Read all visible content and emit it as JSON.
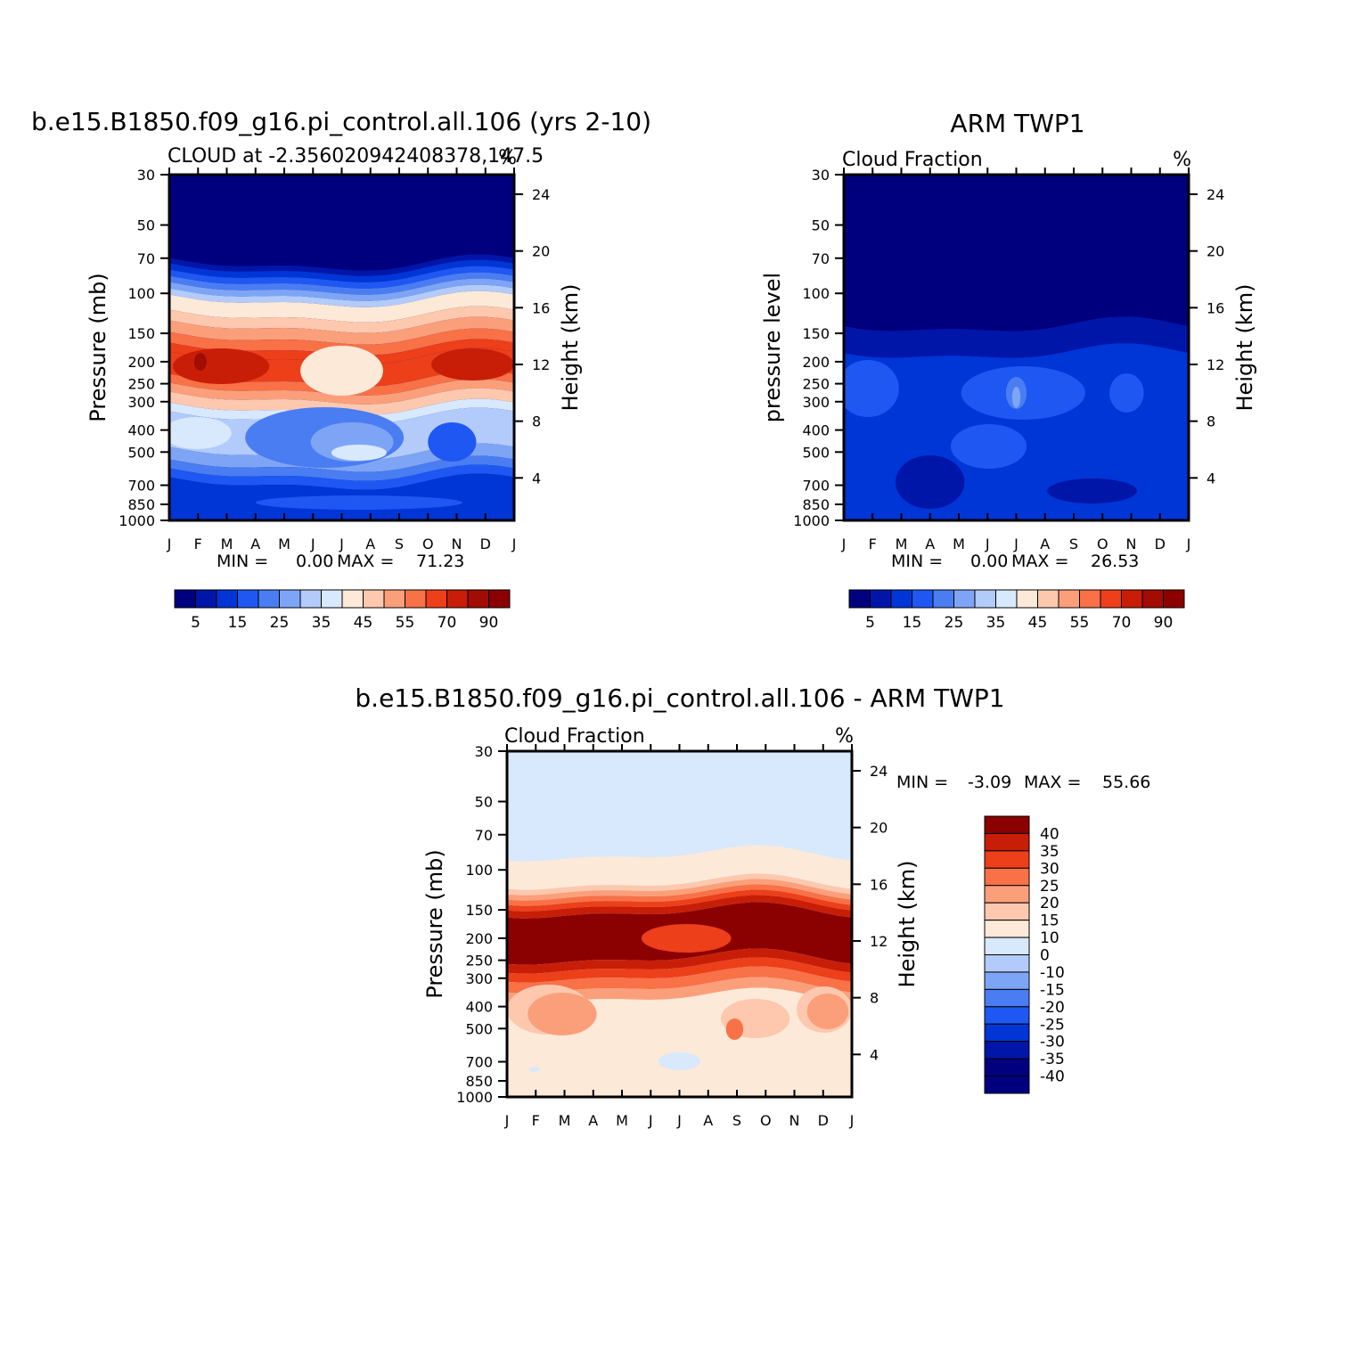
{
  "palettes": {
    "abs": [
      "#00007f",
      "#0016a8",
      "#0035d6",
      "#1f57f3",
      "#4a7df2",
      "#7ea5f5",
      "#b2cbfa",
      "#d8e8fd",
      "#fde9d8",
      "#fdc8ae",
      "#fb9f7a",
      "#f87147",
      "#ec3f1a",
      "#c81e08",
      "#a30c02",
      "#8b0000"
    ],
    "diff": [
      "#00007f",
      "#0016a8",
      "#0035d6",
      "#1f57f3",
      "#4a7df2",
      "#7ea5f5",
      "#b2cbfa",
      "#d8e8fd",
      "#fde9d8",
      "#fdc8ae",
      "#fb9f7a",
      "#f87147",
      "#ec3f1a",
      "#c81e08",
      "#8b0000"
    ]
  },
  "chart_data": [
    {
      "type": "contour",
      "id": "model",
      "title": "b.e15.B1850.f09_g16.pi_control.all.106 (yrs 2-10)",
      "subtitle_left": "CLOUD at -2.356020942408378,147.5",
      "subtitle_right": "%",
      "xlabel": "",
      "ylabel": "Pressure (mb)",
      "ylabel_right": "Height (km)",
      "x_ticks": [
        "J",
        "F",
        "M",
        "A",
        "M",
        "J",
        "J",
        "A",
        "S",
        "O",
        "N",
        "D",
        "J"
      ],
      "y_ticks": [
        30,
        50,
        70,
        100,
        150,
        200,
        250,
        300,
        400,
        500,
        700,
        850,
        1000
      ],
      "y_range": [
        30,
        1000
      ],
      "height_ticks": [
        24,
        20,
        16,
        12,
        8,
        4
      ],
      "min_label": "MIN =",
      "min_value": "0.00",
      "max_label": "MAX =",
      "max_value": "71.23",
      "colorbar": {
        "orientation": "horizontal",
        "labels": [
          "5",
          "15",
          "25",
          "35",
          "45",
          "55",
          "70",
          "90"
        ]
      },
      "bands": [
        {
          "c": 0,
          "t": 0,
          "b": 100
        },
        {
          "c": 1,
          "t": 100,
          "b": 106
        },
        {
          "c": 2,
          "t": 106,
          "b": 113
        },
        {
          "c": 3,
          "t": 113,
          "b": 120
        },
        {
          "c": 4,
          "t": 120,
          "b": 127
        },
        {
          "c": 5,
          "t": 127,
          "b": 134
        },
        {
          "c": 6,
          "t": 134,
          "b": 141
        },
        {
          "c": 8,
          "t": 141,
          "b": 158
        },
        {
          "c": 9,
          "t": 158,
          "b": 170
        },
        {
          "c": 10,
          "t": 170,
          "b": 183
        },
        {
          "c": 11,
          "t": 183,
          "b": 195
        },
        {
          "c": 12,
          "t": 195,
          "b": 205
        },
        {
          "c": 12,
          "t": 205,
          "b": 230
        },
        {
          "c": 11,
          "t": 230,
          "b": 240
        },
        {
          "c": 10,
          "t": 240,
          "b": 250
        },
        {
          "c": 9,
          "t": 250,
          "b": 262
        },
        {
          "c": 7,
          "t": 262,
          "b": 272
        },
        {
          "c": 6,
          "t": 272,
          "b": 312
        },
        {
          "c": 5,
          "t": 312,
          "b": 326
        },
        {
          "c": 4,
          "t": 326,
          "b": 336
        },
        {
          "c": 3,
          "t": 336,
          "b": 346
        },
        {
          "c": 2,
          "t": 346,
          "b": 388
        }
      ],
      "blobs": [
        {
          "c": 13,
          "cx": 0.15,
          "cy": 215,
          "rx": 0.14,
          "ry": 20
        },
        {
          "c": 13,
          "cx": 0.88,
          "cy": 213,
          "rx": 0.12,
          "ry": 18
        },
        {
          "c": 14,
          "cx": 0.09,
          "cy": 210,
          "rx": 0.018,
          "ry": 10
        },
        {
          "c": 8,
          "cx": 0.5,
          "cy": 220,
          "rx": 0.12,
          "ry": 28
        },
        {
          "c": 7,
          "cx": 0.08,
          "cy": 290,
          "rx": 0.1,
          "ry": 18
        },
        {
          "c": 4,
          "cx": 0.45,
          "cy": 295,
          "rx": 0.23,
          "ry": 34
        },
        {
          "c": 5,
          "cx": 0.53,
          "cy": 300,
          "rx": 0.12,
          "ry": 22
        },
        {
          "c": 7,
          "cx": 0.55,
          "cy": 312,
          "rx": 0.08,
          "ry": 9
        },
        {
          "c": 3,
          "cx": 0.82,
          "cy": 300,
          "rx": 0.07,
          "ry": 22
        },
        {
          "c": 3,
          "cx": 0.55,
          "cy": 368,
          "rx": 0.3,
          "ry": 8
        }
      ]
    },
    {
      "type": "contour",
      "id": "obs",
      "title": "ARM TWP1",
      "subtitle_left": "Cloud Fraction",
      "subtitle_right": "%",
      "ylabel": "pressure level",
      "ylabel_right": "Height (km)",
      "x_ticks": [
        "J",
        "F",
        "M",
        "A",
        "M",
        "J",
        "J",
        "A",
        "S",
        "O",
        "N",
        "D",
        "J"
      ],
      "y_ticks": [
        30,
        50,
        70,
        100,
        150,
        200,
        250,
        300,
        400,
        500,
        700,
        850,
        1000
      ],
      "y_range": [
        30,
        1000
      ],
      "height_ticks": [
        24,
        20,
        16,
        12,
        8,
        4
      ],
      "min_label": "MIN =",
      "min_value": "0.00",
      "max_label": "MAX =",
      "max_value": "26.53",
      "colorbar": {
        "orientation": "horizontal",
        "labels": [
          "5",
          "15",
          "25",
          "35",
          "45",
          "55",
          "70",
          "90"
        ]
      },
      "bands": [
        {
          "c": 0,
          "t": 0,
          "b": 170
        },
        {
          "c": 1,
          "t": 170,
          "b": 200
        },
        {
          "c": 2,
          "t": 200,
          "b": 388
        }
      ],
      "blobs": [
        {
          "c": 3,
          "cx": 0.07,
          "cy": 240,
          "rx": 0.09,
          "ry": 32
        },
        {
          "c": 3,
          "cx": 0.52,
          "cy": 245,
          "rx": 0.18,
          "ry": 30
        },
        {
          "c": 4,
          "cx": 0.5,
          "cy": 245,
          "rx": 0.03,
          "ry": 18
        },
        {
          "c": 5,
          "cx": 0.5,
          "cy": 250,
          "rx": 0.012,
          "ry": 12
        },
        {
          "c": 3,
          "cx": 0.82,
          "cy": 245,
          "rx": 0.05,
          "ry": 22
        },
        {
          "c": 3,
          "cx": 0.42,
          "cy": 305,
          "rx": 0.11,
          "ry": 25
        },
        {
          "c": 1,
          "cx": 0.25,
          "cy": 345,
          "rx": 0.1,
          "ry": 30
        },
        {
          "c": 1,
          "cx": 0.72,
          "cy": 355,
          "rx": 0.13,
          "ry": 14
        }
      ]
    },
    {
      "type": "contour",
      "id": "diff",
      "title": "b.e15.B1850.f09_g16.pi_control.all.106 - ARM TWP1",
      "subtitle_left": "Cloud Fraction",
      "subtitle_right": "%",
      "ylabel": "Pressure (mb)",
      "ylabel_right": "Height (km)",
      "x_ticks": [
        "J",
        "F",
        "M",
        "A",
        "M",
        "J",
        "J",
        "A",
        "S",
        "O",
        "N",
        "D",
        "J"
      ],
      "y_ticks": [
        30,
        50,
        70,
        100,
        150,
        200,
        250,
        300,
        400,
        500,
        700,
        850,
        1000
      ],
      "y_range": [
        30,
        1000
      ],
      "height_ticks": [
        24,
        20,
        16,
        12,
        8,
        4
      ],
      "min_label": "MIN =",
      "min_value": "-3.09",
      "max_label": "MAX =",
      "max_value": "55.66",
      "colorbar": {
        "orientation": "vertical",
        "labels": [
          "40",
          "35",
          "30",
          "25",
          "20",
          "15",
          "10",
          "0",
          "-10",
          "-15",
          "-20",
          "-25",
          "-30",
          "-35",
          "-40"
        ]
      },
      "bands": [
        {
          "c": 7,
          "t": 0,
          "b": 116
        },
        {
          "c": 8,
          "t": 116,
          "b": 148
        },
        {
          "c": 9,
          "t": 148,
          "b": 154
        },
        {
          "c": 10,
          "t": 154,
          "b": 160
        },
        {
          "c": 11,
          "t": 160,
          "b": 166
        },
        {
          "c": 12,
          "t": 166,
          "b": 172
        },
        {
          "c": 13,
          "t": 172,
          "b": 180
        },
        {
          "c": 14,
          "t": 180,
          "b": 232
        },
        {
          "c": 13,
          "t": 232,
          "b": 242
        },
        {
          "c": 12,
          "t": 242,
          "b": 252
        },
        {
          "c": 11,
          "t": 252,
          "b": 264
        },
        {
          "c": 10,
          "t": 264,
          "b": 276
        },
        {
          "c": 8,
          "t": 276,
          "b": 388
        }
      ],
      "blobs": [
        {
          "c": 12,
          "cx": 0.52,
          "cy": 210,
          "rx": 0.13,
          "ry": 16
        },
        {
          "c": 9,
          "cx": 0.12,
          "cy": 290,
          "rx": 0.12,
          "ry": 28
        },
        {
          "c": 10,
          "cx": 0.16,
          "cy": 295,
          "rx": 0.1,
          "ry": 24
        },
        {
          "c": 9,
          "cx": 0.92,
          "cy": 290,
          "rx": 0.08,
          "ry": 26
        },
        {
          "c": 10,
          "cx": 0.93,
          "cy": 292,
          "rx": 0.06,
          "ry": 20
        },
        {
          "c": 9,
          "cx": 0.72,
          "cy": 300,
          "rx": 0.1,
          "ry": 22
        },
        {
          "c": 11,
          "cx": 0.66,
          "cy": 312,
          "rx": 0.025,
          "ry": 12
        },
        {
          "c": 7,
          "cx": 0.5,
          "cy": 348,
          "rx": 0.06,
          "ry": 10
        },
        {
          "c": 7,
          "cx": 0.08,
          "cy": 357,
          "rx": 0.015,
          "ry": 3
        }
      ]
    }
  ]
}
